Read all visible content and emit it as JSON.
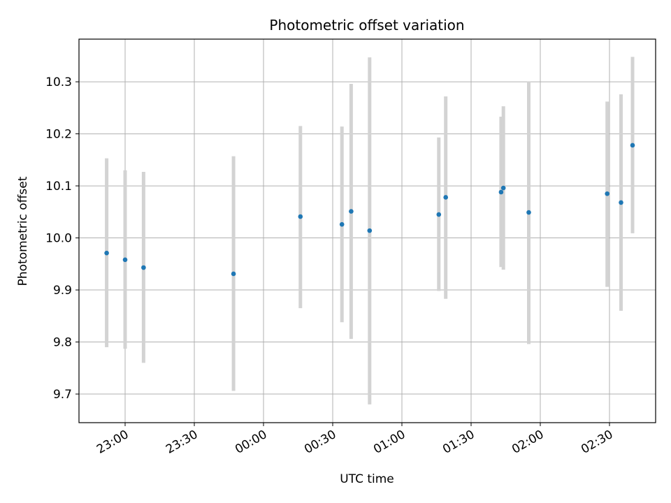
{
  "chart_data": {
    "type": "scatter",
    "title": "Photometric offset variation",
    "xlabel": "UTC time",
    "ylabel": "Photometric offset",
    "x_axis": {
      "type": "time",
      "range": [
        "22:40",
        "02:50"
      ],
      "ticks": [
        "23:00",
        "23:30",
        "00:00",
        "00:30",
        "01:00",
        "01:30",
        "02:00",
        "02:30"
      ]
    },
    "y_axis": {
      "range": [
        9.645,
        10.382
      ],
      "ticks": [
        "9.7",
        "9.8",
        "9.9",
        "10.0",
        "10.1",
        "10.2",
        "10.3"
      ]
    },
    "grid": true,
    "marker_color": "#1f77b4",
    "errorbar_color": "#d3d3d3",
    "points": [
      {
        "x": "22:52",
        "y": 9.971,
        "err_low": 9.79,
        "err_high": 10.153
      },
      {
        "x": "23:00",
        "y": 9.958,
        "err_low": 9.787,
        "err_high": 10.13
      },
      {
        "x": "23:08",
        "y": 9.943,
        "err_low": 9.76,
        "err_high": 10.127
      },
      {
        "x": "23:47",
        "y": 9.931,
        "err_low": 9.706,
        "err_high": 10.157
      },
      {
        "x": "00:16",
        "y": 10.041,
        "err_low": 9.865,
        "err_high": 10.215
      },
      {
        "x": "00:34",
        "y": 10.026,
        "err_low": 9.838,
        "err_high": 10.214
      },
      {
        "x": "00:38",
        "y": 10.051,
        "err_low": 9.806,
        "err_high": 10.296
      },
      {
        "x": "00:46",
        "y": 10.014,
        "err_low": 9.68,
        "err_high": 10.347
      },
      {
        "x": "01:16",
        "y": 10.045,
        "err_low": 9.898,
        "err_high": 10.193
      },
      {
        "x": "01:19",
        "y": 10.078,
        "err_low": 9.883,
        "err_high": 10.272
      },
      {
        "x": "01:43",
        "y": 10.088,
        "err_low": 9.944,
        "err_high": 10.233
      },
      {
        "x": "01:44",
        "y": 10.096,
        "err_low": 9.939,
        "err_high": 10.253
      },
      {
        "x": "01:55",
        "y": 10.049,
        "err_low": 9.796,
        "err_high": 10.301
      },
      {
        "x": "02:29",
        "y": 10.085,
        "err_low": 9.906,
        "err_high": 10.262
      },
      {
        "x": "02:35",
        "y": 10.068,
        "err_low": 9.86,
        "err_high": 10.276
      },
      {
        "x": "02:40",
        "y": 10.178,
        "err_low": 10.009,
        "err_high": 10.348
      }
    ]
  }
}
